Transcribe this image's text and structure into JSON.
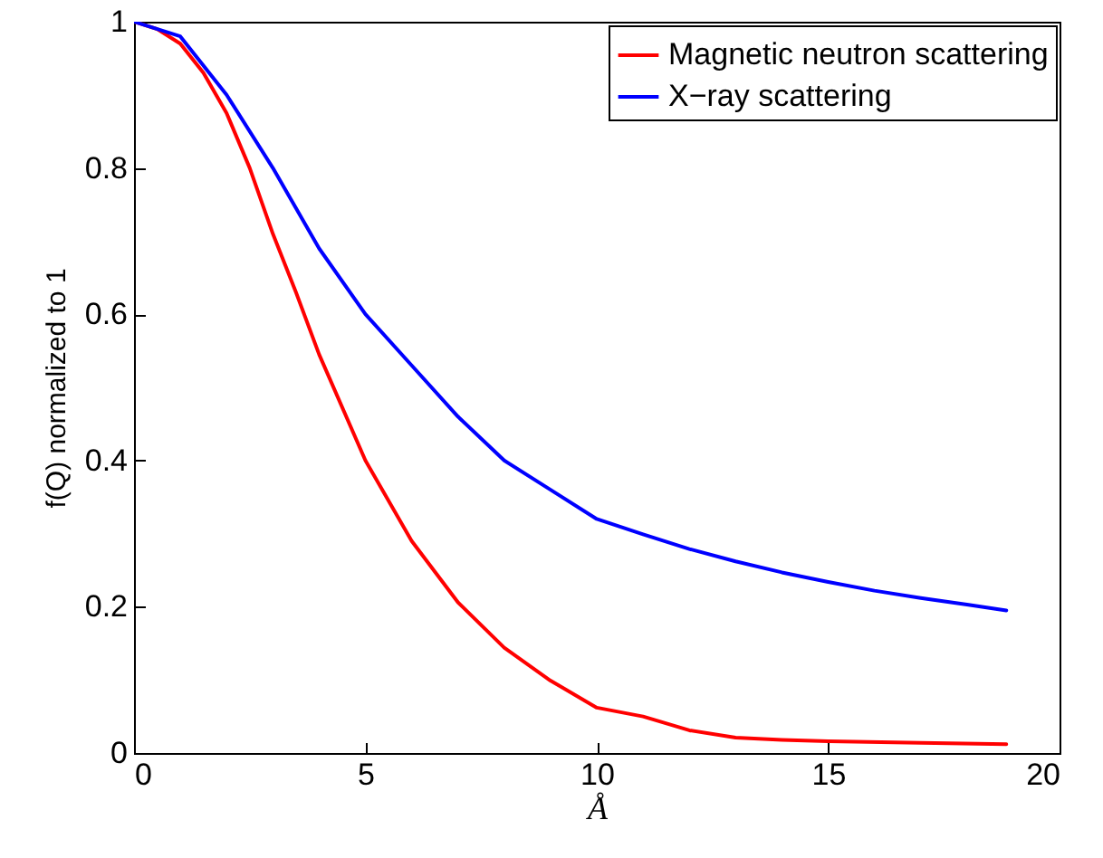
{
  "chart_data": {
    "type": "line",
    "xlabel": "Å",
    "ylabel": "f(Q) normalized to 1",
    "xlim": [
      0,
      20
    ],
    "ylim": [
      0,
      1
    ],
    "xticks": [
      0,
      5,
      10,
      15,
      20
    ],
    "yticks": [
      0,
      0.2,
      0.4,
      0.6,
      0.8,
      1
    ],
    "grid": false,
    "legend": "top right",
    "marker": "none",
    "line_style": "solid",
    "series": [
      {
        "name": "Magnetic neutron scattering",
        "color": "#ff0000",
        "x": [
          0,
          0.5,
          1,
          1.5,
          2,
          2.5,
          3,
          3.5,
          4,
          5,
          6,
          7,
          8,
          9,
          10,
          11,
          12,
          13,
          14,
          15,
          17,
          18.85
        ],
        "values": [
          1,
          0.99,
          0.97,
          0.93,
          0.875,
          0.8,
          0.71,
          0.63,
          0.545,
          0.4,
          0.29,
          0.206,
          0.144,
          0.099,
          0.062,
          0.05,
          0.031,
          0.021,
          0.018,
          0.016,
          0.014,
          0.012
        ]
      },
      {
        "name": "X−ray scattering",
        "color": "#0000ff",
        "x": [
          0,
          1,
          2,
          3,
          4,
          5,
          6,
          7,
          8,
          9,
          10,
          11,
          12,
          13,
          14,
          15,
          16,
          17,
          18,
          18.85
        ],
        "values": [
          1,
          0.98,
          0.9,
          0.8,
          0.69,
          0.6,
          0.53,
          0.46,
          0.4,
          0.36,
          0.32,
          0.299,
          0.279,
          0.262,
          0.247,
          0.234,
          0.222,
          0.212,
          0.203,
          0.195
        ]
      }
    ]
  }
}
